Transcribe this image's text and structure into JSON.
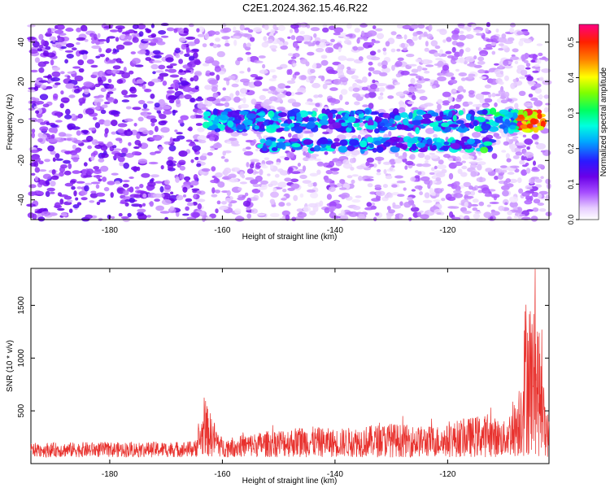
{
  "title": "C2E1.2024.362.15.46.R22",
  "chart_data": [
    {
      "type": "heatmap",
      "xlabel": "Height of straight line (km)",
      "ylabel": "Frequency (Hz)",
      "xlim": [
        -194,
        -102
      ],
      "ylim": [
        -50,
        49
      ],
      "xticks": [
        -180,
        -160,
        -140,
        -120
      ],
      "yticks": [
        -40,
        -20,
        0,
        20,
        40
      ],
      "xtick_labels": [
        "-180",
        "-160",
        "-140",
        "-120"
      ],
      "ytick_labels": [
        "-40",
        "-20",
        "0",
        "20",
        "40"
      ],
      "colorbar": {
        "label": "Normalized spectral amplitude",
        "range": [
          0,
          0.55
        ],
        "ticks": [
          0,
          0.1,
          0.2,
          0.3,
          0.4,
          0.5
        ],
        "tick_labels": [
          "0.0",
          "0.1",
          "0.2",
          "0.3",
          "0.4",
          "0.5"
        ]
      },
      "band": {
        "x_start": -163,
        "x_end": -103,
        "center_frequency": 0,
        "lower_branch_frequency": -12,
        "peak_x": -105,
        "peak_value": 0.55
      },
      "grid": false
    },
    {
      "type": "line",
      "xlabel": "Height of straight line (km)",
      "ylabel": "SNR (10 * v/v)",
      "xlim": [
        -194,
        -102
      ],
      "ylim": [
        0,
        1850
      ],
      "xticks": [
        -180,
        -160,
        -140,
        -120
      ],
      "yticks": [
        500,
        1000,
        1500
      ],
      "xtick_labels": [
        "-180",
        "-160",
        "-140",
        "-120"
      ],
      "ytick_labels": [
        "500",
        "1000",
        "1500"
      ],
      "series": [
        {
          "color": "#e8302c",
          "x": [
            -194,
            -185,
            -175,
            -165,
            -163,
            -160,
            -155,
            -150,
            -145,
            -140,
            -135,
            -130,
            -125,
            -120,
            -118,
            -116,
            -114,
            -112,
            -110,
            -108,
            -107,
            -106,
            -105,
            -104,
            -103,
            -102
          ],
          "y": [
            150,
            160,
            160,
            170,
            580,
            200,
            250,
            300,
            330,
            300,
            330,
            360,
            330,
            340,
            400,
            420,
            450,
            430,
            380,
            600,
            900,
            1850,
            1600,
            1500,
            800,
            400
          ]
        }
      ],
      "grid": false
    }
  ]
}
